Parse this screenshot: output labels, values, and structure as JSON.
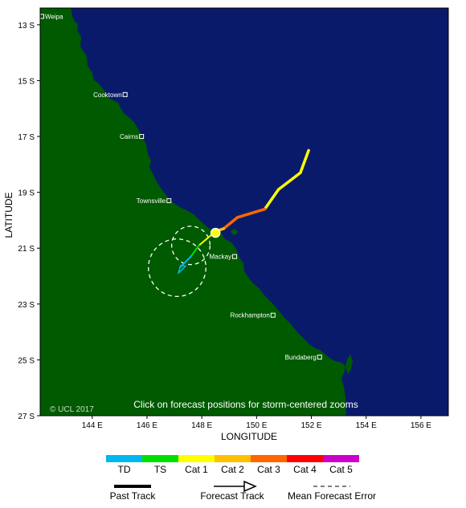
{
  "map": {
    "xlabel": "LONGITUDE",
    "ylabel": "LATITUDE",
    "note": "Click on forecast positions for storm-centered zooms",
    "copyright": "© UCL 2017",
    "ocean_color": "#0a1a6b",
    "land_color": "#005a00",
    "lon_range": [
      142.1,
      157.0
    ],
    "lat_range": [
      -12.4,
      -27.0
    ],
    "lon_ticks": [
      "144 E",
      "146 E",
      "148 E",
      "150 E",
      "152 E",
      "154 E",
      "156 E"
    ],
    "lat_ticks": [
      "13 S",
      "15 S",
      "17 S",
      "19 S",
      "21 S",
      "23 S",
      "25 S",
      "27 S"
    ]
  },
  "cities": [
    {
      "name": "Weipa",
      "lon": 142.1,
      "lat": -12.7
    },
    {
      "name": "Cooktown",
      "lon": 145.2,
      "lat": -15.5
    },
    {
      "name": "Cairns",
      "lon": 145.8,
      "lat": -17.0
    },
    {
      "name": "Townsville",
      "lon": 146.8,
      "lat": -19.3
    },
    {
      "name": "Mackay",
      "lon": 149.2,
      "lat": -21.3
    },
    {
      "name": "Rockhampton",
      "lon": 150.6,
      "lat": -23.4
    },
    {
      "name": "Bundaberg",
      "lon": 152.3,
      "lat": -24.9
    }
  ],
  "storm": {
    "track": [
      {
        "lon": 151.9,
        "lat": -17.5,
        "category": "TS"
      },
      {
        "lon": 151.6,
        "lat": -18.3,
        "category": "Cat 1"
      },
      {
        "lon": 150.8,
        "lat": -18.9,
        "category": "Cat 1"
      },
      {
        "lon": 150.3,
        "lat": -19.6,
        "category": "Cat 1"
      },
      {
        "lon": 149.3,
        "lat": -19.9,
        "category": "Cat 3"
      },
      {
        "lon": 148.8,
        "lat": -20.3,
        "category": "Cat 3"
      },
      {
        "lon": 148.5,
        "lat": -20.4,
        "category": "Cat 2"
      },
      {
        "lon": 147.9,
        "lat": -20.9,
        "category": "Cat 1"
      },
      {
        "lon": 147.6,
        "lat": -21.3,
        "category": "TS"
      },
      {
        "lon": 147.2,
        "lat": -21.7,
        "category": "TD"
      }
    ],
    "current_position": {
      "lon": 148.5,
      "lat": -20.45
    },
    "forecast_error_circles": [
      {
        "lon": 147.6,
        "lat": -20.9,
        "radius_deg": 0.7
      },
      {
        "lon": 147.1,
        "lat": -21.7,
        "radius_deg": 1.05
      }
    ]
  },
  "legend": {
    "items": [
      {
        "label": "TD",
        "color": "#00b7ef"
      },
      {
        "label": "TS",
        "color": "#00e000"
      },
      {
        "label": "Cat 1",
        "color": "#ffff00"
      },
      {
        "label": "Cat 2",
        "color": "#ffc000"
      },
      {
        "label": "Cat 3",
        "color": "#ff6600"
      },
      {
        "label": "Cat 4",
        "color": "#ff0000"
      },
      {
        "label": "Cat 5",
        "color": "#cc00cc"
      }
    ]
  },
  "key": {
    "past_track": "Past Track",
    "forecast_track": "Forecast Track",
    "mean_error": "Mean Forecast Error"
  }
}
